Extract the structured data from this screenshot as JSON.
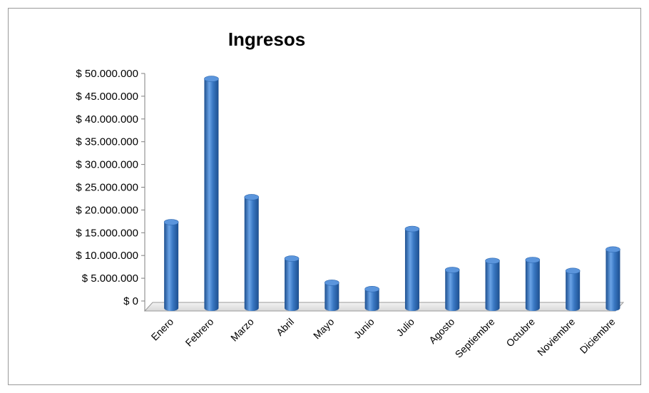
{
  "chart_data": {
    "type": "bar",
    "style": "3d-cylinder",
    "title": "Ingresos",
    "categories": [
      "Enero",
      "Febrero",
      "Marzo",
      "Abril",
      "Mayo",
      "Junio",
      "Julio",
      "Agosto",
      "Septiembre",
      "Octubre",
      "Noviembre",
      "Diciembre"
    ],
    "values": [
      17000000,
      48500000,
      22500000,
      9000000,
      3700000,
      2300000,
      15500000,
      6500000,
      8500000,
      8700000,
      6300000,
      11000000
    ],
    "ylim": [
      0,
      50000000
    ],
    "yticks": [
      "$ 0",
      "$ 5.000.000",
      "$ 10.000.000",
      "$ 15.000.000",
      "$ 20.000.000",
      "$ 25.000.000",
      "$ 30.000.000",
      "$ 35.000.000",
      "$ 40.000.000",
      "$ 45.000.000",
      "$ 50.000.000"
    ],
    "xlabel": "",
    "ylabel": "",
    "grid": false,
    "legend": "none",
    "colors": {
      "bar": "#3a78c3",
      "bar_dark": "#1d4f8f",
      "bar_light": "#7fb0ea",
      "floor": "#e6e6e6"
    }
  }
}
